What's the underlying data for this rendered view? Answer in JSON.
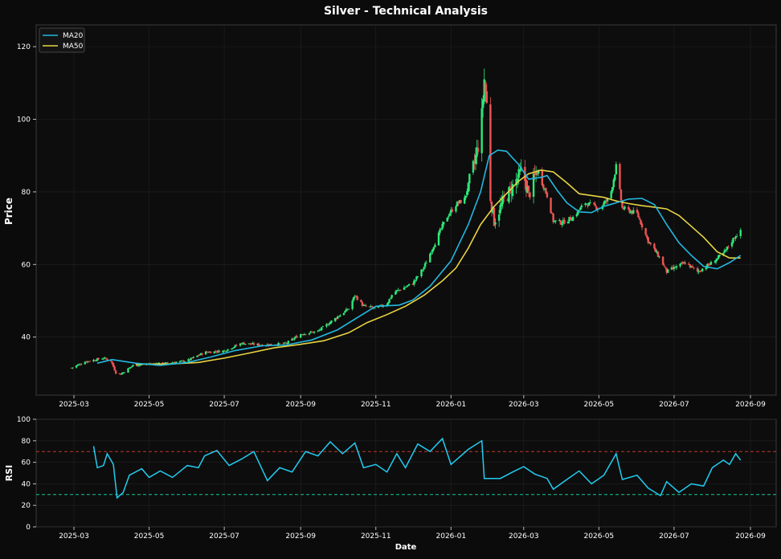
{
  "chart_data": {
    "type": "candlestick",
    "title": "Silver - Technical Analysis",
    "x_ticks": [
      "2025-03",
      "2025-05",
      "2025-07",
      "2025-09",
      "2025-11",
      "2026-01",
      "2026-03",
      "2026-05",
      "2026-07",
      "2026-09"
    ],
    "colors": {
      "background": "#0b0b0b",
      "panel": "#0d0d0d",
      "up": "#2ee87a",
      "down": "#f05454",
      "ma20": "#22b8e0",
      "ma50": "#e8d442",
      "rsi": "#22ccf0",
      "overbought_line": "#c0392b",
      "oversold_line": "#16c79a",
      "grid": "#222222",
      "text": "#ffffff"
    },
    "price_panel": {
      "ylabel": "Price",
      "ylim": [
        24,
        126
      ],
      "y_ticks": [
        40,
        60,
        80,
        100,
        120
      ],
      "legend": [
        "MA20",
        "MA50"
      ],
      "legend_position": "top-left",
      "close_trend": [
        [
          "2025-02-27",
          31.5
        ],
        [
          "2025-03-10",
          33.2
        ],
        [
          "2025-03-25",
          34.2
        ],
        [
          "2025-03-31",
          33.5
        ],
        [
          "2025-04-04",
          30.2
        ],
        [
          "2025-04-08",
          29.8
        ],
        [
          "2025-04-18",
          32.2
        ],
        [
          "2025-05-01",
          32.6
        ],
        [
          "2025-05-15",
          32.8
        ],
        [
          "2025-06-01",
          33.5
        ],
        [
          "2025-06-15",
          35.8
        ],
        [
          "2025-07-01",
          36.2
        ],
        [
          "2025-07-15",
          38.3
        ],
        [
          "2025-08-01",
          37.8
        ],
        [
          "2025-08-20",
          38.2
        ],
        [
          "2025-09-01",
          40.8
        ],
        [
          "2025-09-15",
          41.6
        ],
        [
          "2025-10-01",
          45.6
        ],
        [
          "2025-10-10",
          47.8
        ],
        [
          "2025-10-15",
          51.5
        ],
        [
          "2025-10-22",
          48.5
        ],
        [
          "2025-11-01",
          47.9
        ],
        [
          "2025-11-10",
          49.2
        ],
        [
          "2025-11-15",
          52.2
        ],
        [
          "2025-12-01",
          54.8
        ],
        [
          "2025-12-10",
          59.2
        ],
        [
          "2025-12-20",
          66.8
        ],
        [
          "2025-12-28",
          72.8
        ],
        [
          "2026-01-05",
          76.5
        ],
        [
          "2026-01-12",
          78.0
        ],
        [
          "2026-01-20",
          88.0
        ],
        [
          "2026-01-25",
          96.0
        ],
        [
          "2026-01-28",
          111.0
        ],
        [
          "2026-01-30",
          104.0
        ],
        [
          "2026-02-01",
          80.5
        ],
        [
          "2026-02-05",
          72.0
        ],
        [
          "2026-02-12",
          77.0
        ],
        [
          "2026-02-20",
          81.5
        ],
        [
          "2026-02-28",
          86.0
        ],
        [
          "2026-03-05",
          79.0
        ],
        [
          "2026-03-12",
          86.0
        ],
        [
          "2026-03-20",
          79.0
        ],
        [
          "2026-03-25",
          72.0
        ],
        [
          "2026-04-01",
          71.5
        ],
        [
          "2026-04-10",
          73.0
        ],
        [
          "2026-04-20",
          77.0
        ],
        [
          "2026-05-01",
          75.5
        ],
        [
          "2026-05-10",
          78.5
        ],
        [
          "2026-05-15",
          87.0
        ],
        [
          "2026-05-20",
          75.5
        ],
        [
          "2026-06-01",
          74.0
        ],
        [
          "2026-06-10",
          66.5
        ],
        [
          "2026-06-20",
          61.5
        ],
        [
          "2026-06-25",
          58.0
        ],
        [
          "2026-07-01",
          59.0
        ],
        [
          "2026-07-10",
          60.5
        ],
        [
          "2026-07-20",
          58.0
        ],
        [
          "2026-08-01",
          60.5
        ],
        [
          "2026-08-10",
          63.0
        ],
        [
          "2026-08-20",
          68.0
        ],
        [
          "2026-08-24",
          69.0
        ]
      ],
      "ma20": [
        [
          "2025-03-20",
          32.8
        ],
        [
          "2025-04-01",
          33.8
        ],
        [
          "2025-04-20",
          32.8
        ],
        [
          "2025-05-10",
          32.2
        ],
        [
          "2025-06-01",
          33.0
        ],
        [
          "2025-06-20",
          34.5
        ],
        [
          "2025-07-10",
          36.3
        ],
        [
          "2025-08-01",
          37.6
        ],
        [
          "2025-08-20",
          37.8
        ],
        [
          "2025-09-10",
          39.2
        ],
        [
          "2025-10-01",
          42.0
        ],
        [
          "2025-10-20",
          46.0
        ],
        [
          "2025-11-01",
          48.5
        ],
        [
          "2025-11-20",
          48.8
        ],
        [
          "2025-12-01",
          50.2
        ],
        [
          "2025-12-15",
          54.0
        ],
        [
          "2026-01-01",
          61.0
        ],
        [
          "2026-01-15",
          71.0
        ],
        [
          "2026-01-25",
          80.0
        ],
        [
          "2026-02-01",
          90.0
        ],
        [
          "2026-02-08",
          91.5
        ],
        [
          "2026-02-15",
          91.2
        ],
        [
          "2026-02-25",
          87.5
        ],
        [
          "2026-03-05",
          83.5
        ],
        [
          "2026-03-15",
          84.0
        ],
        [
          "2026-03-20",
          84.5
        ],
        [
          "2026-03-28",
          80.5
        ],
        [
          "2026-04-05",
          77.0
        ],
        [
          "2026-04-15",
          74.5
        ],
        [
          "2026-04-25",
          74.3
        ],
        [
          "2026-05-05",
          76.0
        ],
        [
          "2026-05-15",
          77.0
        ],
        [
          "2026-05-25",
          78.0
        ],
        [
          "2026-06-05",
          78.2
        ],
        [
          "2026-06-15",
          76.5
        ],
        [
          "2026-06-25",
          71.0
        ],
        [
          "2026-07-05",
          66.0
        ],
        [
          "2026-07-15",
          62.5
        ],
        [
          "2026-07-25",
          59.5
        ],
        [
          "2026-08-05",
          58.8
        ],
        [
          "2026-08-15",
          60.5
        ],
        [
          "2026-08-24",
          62.5
        ]
      ],
      "ma50": [
        [
          "2025-04-20",
          32.5
        ],
        [
          "2025-05-20",
          32.6
        ],
        [
          "2025-06-10",
          33.0
        ],
        [
          "2025-07-01",
          34.2
        ],
        [
          "2025-07-20",
          35.5
        ],
        [
          "2025-08-10",
          37.0
        ],
        [
          "2025-09-01",
          38.0
        ],
        [
          "2025-09-20",
          39.0
        ],
        [
          "2025-10-10",
          41.2
        ],
        [
          "2025-10-25",
          44.0
        ],
        [
          "2025-11-10",
          46.2
        ],
        [
          "2025-11-25",
          48.5
        ],
        [
          "2025-12-10",
          51.5
        ],
        [
          "2025-12-25",
          55.5
        ],
        [
          "2026-01-05",
          59.0
        ],
        [
          "2026-01-15",
          64.5
        ],
        [
          "2026-01-25",
          71.0
        ],
        [
          "2026-02-05",
          76.0
        ],
        [
          "2026-02-15",
          79.5
        ],
        [
          "2026-02-25",
          83.0
        ],
        [
          "2026-03-05",
          85.0
        ],
        [
          "2026-03-15",
          86.0
        ],
        [
          "2026-03-25",
          85.5
        ],
        [
          "2026-04-05",
          82.5
        ],
        [
          "2026-04-15",
          79.5
        ],
        [
          "2026-04-25",
          79.0
        ],
        [
          "2026-05-05",
          78.5
        ],
        [
          "2026-05-15",
          77.5
        ],
        [
          "2026-05-25",
          76.8
        ],
        [
          "2026-06-05",
          76.2
        ],
        [
          "2026-06-15",
          75.8
        ],
        [
          "2026-06-25",
          75.3
        ],
        [
          "2026-07-05",
          73.5
        ],
        [
          "2026-07-15",
          70.5
        ],
        [
          "2026-07-25",
          67.5
        ],
        [
          "2026-08-05",
          63.5
        ],
        [
          "2026-08-15",
          61.8
        ],
        [
          "2026-08-24",
          61.8
        ]
      ]
    },
    "rsi_panel": {
      "ylabel": "RSI",
      "xlabel": "Date",
      "ylim": [
        0,
        100
      ],
      "y_ticks": [
        0,
        20,
        40,
        60,
        80,
        100
      ],
      "overbought": 70,
      "oversold": 30,
      "series": [
        [
          "2025-03-17",
          75
        ],
        [
          "2025-03-20",
          55
        ],
        [
          "2025-03-25",
          57
        ],
        [
          "2025-03-28",
          68
        ],
        [
          "2025-04-02",
          58
        ],
        [
          "2025-04-05",
          27
        ],
        [
          "2025-04-10",
          32
        ],
        [
          "2025-04-15",
          48
        ],
        [
          "2025-04-25",
          54
        ],
        [
          "2025-05-01",
          46
        ],
        [
          "2025-05-10",
          52
        ],
        [
          "2025-05-20",
          46
        ],
        [
          "2025-06-01",
          57
        ],
        [
          "2025-06-10",
          55
        ],
        [
          "2025-06-15",
          66
        ],
        [
          "2025-06-25",
          71
        ],
        [
          "2025-07-05",
          57
        ],
        [
          "2025-07-15",
          63
        ],
        [
          "2025-07-25",
          70
        ],
        [
          "2025-08-05",
          43
        ],
        [
          "2025-08-15",
          55
        ],
        [
          "2025-08-25",
          51
        ],
        [
          "2025-09-05",
          70
        ],
        [
          "2025-09-15",
          66
        ],
        [
          "2025-09-25",
          79
        ],
        [
          "2025-10-05",
          68
        ],
        [
          "2025-10-15",
          78
        ],
        [
          "2025-10-22",
          55
        ],
        [
          "2025-11-01",
          58
        ],
        [
          "2025-11-10",
          51
        ],
        [
          "2025-11-18",
          68
        ],
        [
          "2025-11-25",
          55
        ],
        [
          "2025-12-05",
          77
        ],
        [
          "2025-12-15",
          70
        ],
        [
          "2025-12-25",
          82
        ],
        [
          "2026-01-01",
          58
        ],
        [
          "2026-01-15",
          72
        ],
        [
          "2026-01-26",
          80
        ],
        [
          "2026-01-28",
          45
        ],
        [
          "2026-02-10",
          45
        ],
        [
          "2026-02-20",
          51
        ],
        [
          "2026-03-01",
          56
        ],
        [
          "2026-03-10",
          49
        ],
        [
          "2026-03-20",
          45
        ],
        [
          "2026-03-25",
          35
        ],
        [
          "2026-04-05",
          44
        ],
        [
          "2026-04-15",
          52
        ],
        [
          "2026-04-25",
          40
        ],
        [
          "2026-05-05",
          48
        ],
        [
          "2026-05-15",
          68
        ],
        [
          "2026-05-20",
          44
        ],
        [
          "2026-06-01",
          48
        ],
        [
          "2026-06-10",
          36
        ],
        [
          "2026-06-20",
          29
        ],
        [
          "2026-06-25",
          42
        ],
        [
          "2026-07-05",
          32
        ],
        [
          "2026-07-15",
          40
        ],
        [
          "2026-07-25",
          38
        ],
        [
          "2026-08-01",
          55
        ],
        [
          "2026-08-10",
          62
        ],
        [
          "2026-08-15",
          58
        ],
        [
          "2026-08-20",
          68
        ],
        [
          "2026-08-24",
          62
        ]
      ]
    }
  }
}
